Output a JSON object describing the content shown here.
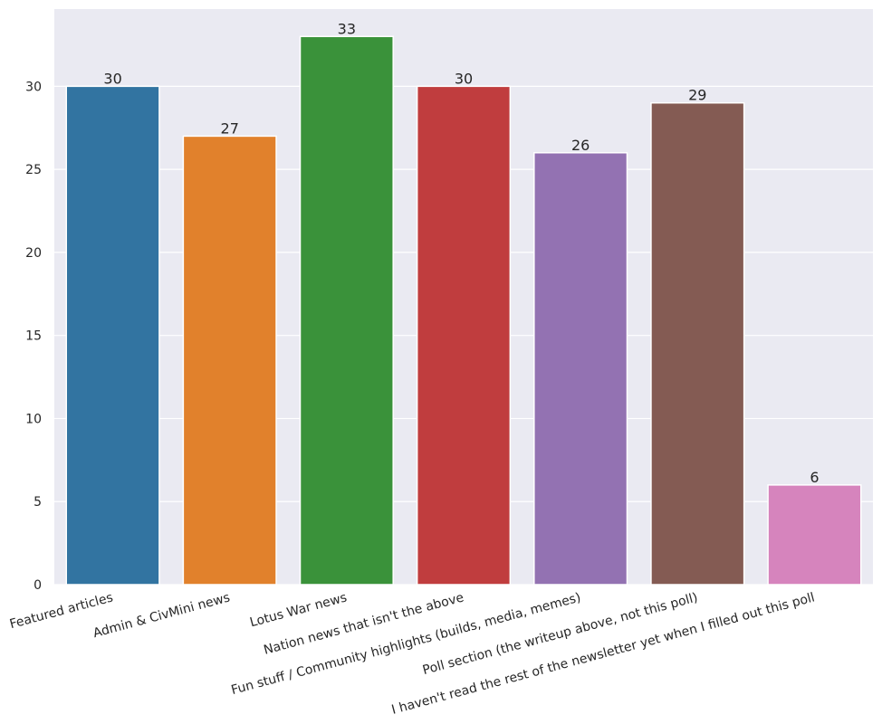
{
  "chart_data": {
    "type": "bar",
    "title": "",
    "xlabel": "",
    "ylabel": "",
    "ylim": [
      0,
      34.65
    ],
    "yticks": [
      0,
      5,
      10,
      15,
      20,
      25,
      30
    ],
    "grid": true,
    "legend": "none",
    "categories": [
      "Featured articles",
      "Admin & CivMini news",
      "Lotus War news",
      "Nation news that isn't the above",
      "Fun stuff / Community highlights (builds, media, memes)",
      "Poll section (the writeup above, not this poll)",
      "I haven't read the rest of the newsletter yet when I filled out this poll"
    ],
    "values": [
      30,
      27,
      33,
      30,
      26,
      29,
      6
    ],
    "colors": [
      "#3274a1",
      "#e1812c",
      "#3a923a",
      "#c03d3e",
      "#9372b2",
      "#845b53",
      "#d684bd"
    ],
    "background": "#eaeaf2",
    "gridcolor": "#ffffff"
  }
}
